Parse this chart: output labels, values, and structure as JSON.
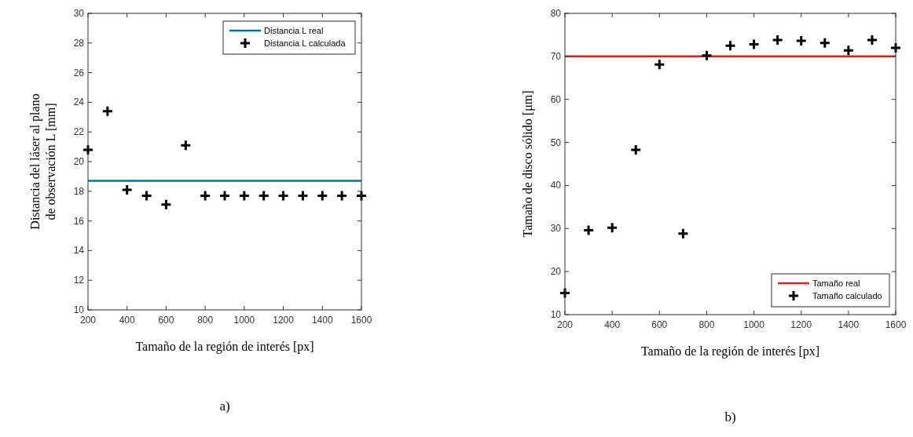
{
  "chart_data": [
    {
      "type": "scatter",
      "xlabel": "Tamaño de la región de interés [px]",
      "ylabel": "Distancia del láser al plano de observación L [mm]",
      "xlim": [
        200,
        1600
      ],
      "xticks": [
        200,
        400,
        600,
        800,
        1000,
        1200,
        1400,
        1600
      ],
      "ylim": [
        10,
        30
      ],
      "yticks": [
        10,
        12,
        14,
        16,
        18,
        20,
        22,
        24,
        26,
        28,
        30
      ],
      "legend": "top right",
      "grid": false,
      "annotations": [
        "a)"
      ],
      "series": [
        {
          "name": "Distancia L real",
          "type": "line",
          "color": "#0072bd",
          "x": [
            200,
            1600
          ],
          "values": [
            18.7,
            18.7
          ],
          "line_style": "solid"
        },
        {
          "name": "Distancia L calculada",
          "color": "#000000",
          "marker": "cross",
          "x": [
            200,
            300,
            400,
            500,
            600,
            700,
            800,
            900,
            1000,
            1100,
            1200,
            1300,
            1400,
            1500,
            1600
          ],
          "values": [
            20.8,
            23.4,
            18.1,
            17.7,
            17.1,
            21.1,
            17.7,
            17.7,
            17.7,
            17.7,
            17.7,
            17.7,
            17.7,
            17.7,
            17.7
          ]
        }
      ]
    },
    {
      "type": "scatter",
      "xlabel": "Tamaño de la región de interés [px]",
      "ylabel": "Tamaño de disco sólido [μm]",
      "xlim": [
        200,
        1600
      ],
      "xticks": [
        200,
        400,
        600,
        800,
        1000,
        1200,
        1400,
        1600
      ],
      "ylim": [
        10,
        80
      ],
      "yticks": [
        10,
        20,
        30,
        40,
        50,
        60,
        70,
        80
      ],
      "legend": "bottom right",
      "grid": false,
      "annotations": [
        "b)"
      ],
      "series": [
        {
          "name": "Tamaño real",
          "type": "line",
          "color": "#e0201b",
          "x": [
            200,
            1600
          ],
          "values": [
            70,
            70
          ],
          "line_style": "solid"
        },
        {
          "name": "Tamaño calculado",
          "color": "#000000",
          "marker": "cross",
          "x": [
            200,
            300,
            400,
            500,
            600,
            700,
            800,
            900,
            1000,
            1100,
            1200,
            1300,
            1400,
            1500,
            1600
          ],
          "values": [
            15,
            29.6,
            30.2,
            48.3,
            68.1,
            28.8,
            70.2,
            72.5,
            72.8,
            73.8,
            73.6,
            73.1,
            71.4,
            73.8,
            72.0
          ]
        }
      ]
    }
  ]
}
